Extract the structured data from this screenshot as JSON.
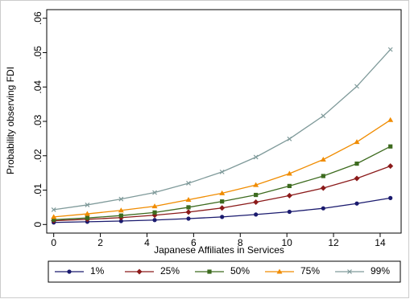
{
  "chart_data": {
    "type": "line",
    "xlabel": "Japanese Affiliates in Services",
    "ylabel": "Probability observing FDI",
    "x": [
      0,
      1.44,
      2.89,
      4.33,
      5.78,
      7.22,
      8.67,
      10.11,
      11.56,
      13.0,
      14.44
    ],
    "series": [
      {
        "name": "1%",
        "color": "#1a1a6e",
        "marker": "circle",
        "values": [
          0.0006,
          0.0008,
          0.001,
          0.0013,
          0.0017,
          0.0022,
          0.0029,
          0.0037,
          0.0047,
          0.0061,
          0.0077
        ]
      },
      {
        "name": "25%",
        "color": "#8b1a1a",
        "marker": "diamond",
        "values": [
          0.0011,
          0.0015,
          0.002,
          0.0027,
          0.0036,
          0.0048,
          0.0065,
          0.0084,
          0.0106,
          0.0134,
          0.017
        ]
      },
      {
        "name": "50%",
        "color": "#3d6b1f",
        "marker": "square",
        "values": [
          0.0014,
          0.0019,
          0.0026,
          0.0035,
          0.005,
          0.0067,
          0.0086,
          0.0112,
          0.0141,
          0.0177,
          0.0227
        ]
      },
      {
        "name": "75%",
        "color": "#f08c00",
        "marker": "triangle",
        "values": [
          0.0022,
          0.0031,
          0.0041,
          0.0053,
          0.0072,
          0.0091,
          0.0115,
          0.0148,
          0.0189,
          0.024,
          0.0304
        ]
      },
      {
        "name": "99%",
        "color": "#7f9a9a",
        "marker": "x",
        "values": [
          0.0043,
          0.0057,
          0.0074,
          0.0093,
          0.012,
          0.0153,
          0.0196,
          0.0249,
          0.0316,
          0.0402,
          0.0509
        ]
      }
    ],
    "xlim": [
      -0.3,
      14.9
    ],
    "ylim": [
      -0.0025,
      0.0625
    ],
    "xticks": [
      0,
      2,
      4,
      6,
      8,
      10,
      12,
      14
    ],
    "yticks": [
      0,
      {
        "value": 0.01,
        "label": ".01"
      },
      {
        "value": 0.02,
        "label": ".02"
      },
      {
        "value": 0.03,
        "label": ".03"
      },
      {
        "value": 0.04,
        "label": ".04"
      },
      {
        "value": 0.05,
        "label": ".05"
      },
      {
        "value": 0.06,
        "label": ".06"
      }
    ],
    "grid": false,
    "legend": "bottom"
  }
}
